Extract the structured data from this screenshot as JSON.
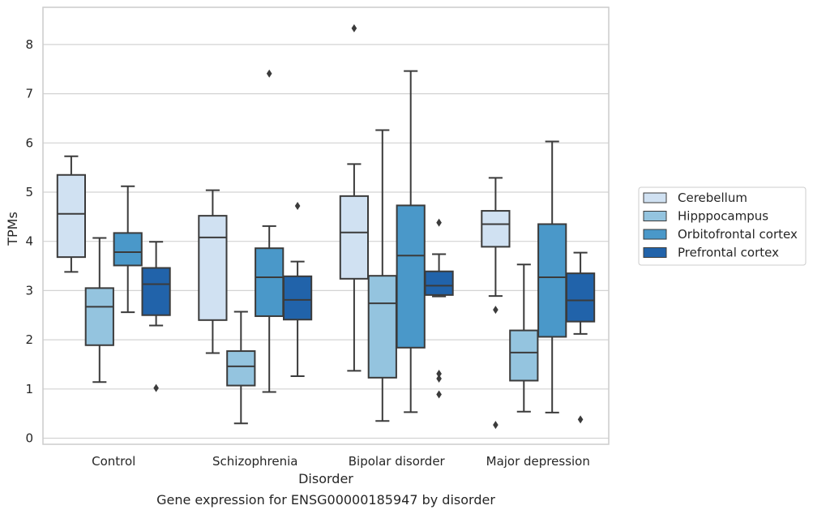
{
  "chart_data": {
    "type": "boxplot",
    "title": "Gene expression for ENSG00000185947 by disorder",
    "xlabel": "Disorder",
    "ylabel": "TPMs",
    "ylim": [
      -0.1,
      8.75
    ],
    "yticks": [
      0,
      1,
      2,
      3,
      4,
      5,
      6,
      7,
      8
    ],
    "grid": true,
    "legend_position": "right",
    "categories": [
      "Control",
      "Schizophrenia",
      "Bipolar disorder",
      "Major depression"
    ],
    "series": [
      {
        "name": "Cerebellum",
        "color": "#d0e1f2",
        "boxes": [
          {
            "whislo": 3.38,
            "q1": 3.68,
            "med": 4.56,
            "q3": 5.35,
            "whishi": 5.73,
            "fliers": []
          },
          {
            "whislo": 1.73,
            "q1": 2.4,
            "med": 4.08,
            "q3": 4.52,
            "whishi": 5.04,
            "fliers": []
          },
          {
            "whislo": 1.37,
            "q1": 3.24,
            "med": 4.18,
            "q3": 4.92,
            "whishi": 5.57,
            "fliers": [
              8.33
            ]
          },
          {
            "whislo": 2.89,
            "q1": 3.89,
            "med": 4.35,
            "q3": 4.62,
            "whishi": 5.29,
            "fliers": [
              2.61,
              0.27
            ]
          }
        ]
      },
      {
        "name": "Hipppocampus",
        "color": "#94c4df",
        "boxes": [
          {
            "whislo": 1.14,
            "q1": 1.89,
            "med": 2.67,
            "q3": 3.05,
            "whishi": 4.07,
            "fliers": []
          },
          {
            "whislo": 0.3,
            "q1": 1.07,
            "med": 1.46,
            "q3": 1.77,
            "whishi": 2.57,
            "fliers": []
          },
          {
            "whislo": 0.35,
            "q1": 1.23,
            "med": 2.74,
            "q3": 3.3,
            "whishi": 6.26,
            "fliers": []
          },
          {
            "whislo": 0.54,
            "q1": 1.17,
            "med": 1.74,
            "q3": 2.19,
            "whishi": 3.53,
            "fliers": []
          }
        ]
      },
      {
        "name": "Orbitofrontal cortex",
        "color": "#4a98c9",
        "boxes": [
          {
            "whislo": 2.56,
            "q1": 3.51,
            "med": 3.78,
            "q3": 4.17,
            "whishi": 5.12,
            "fliers": []
          },
          {
            "whislo": 0.94,
            "q1": 2.48,
            "med": 3.27,
            "q3": 3.86,
            "whishi": 4.31,
            "fliers": [
              7.41
            ]
          },
          {
            "whislo": 0.53,
            "q1": 1.84,
            "med": 3.71,
            "q3": 4.73,
            "whishi": 7.46,
            "fliers": []
          },
          {
            "whislo": 0.52,
            "q1": 2.06,
            "med": 3.27,
            "q3": 4.35,
            "whishi": 6.03,
            "fliers": []
          }
        ]
      },
      {
        "name": "Prefrontal cortex",
        "color": "#2163aa",
        "boxes": [
          {
            "whislo": 2.29,
            "q1": 2.5,
            "med": 3.13,
            "q3": 3.46,
            "whishi": 3.99,
            "fliers": [
              1.02
            ]
          },
          {
            "whislo": 1.26,
            "q1": 2.41,
            "med": 2.81,
            "q3": 3.29,
            "whishi": 3.59,
            "fliers": [
              4.72
            ]
          },
          {
            "whislo": 2.88,
            "q1": 2.91,
            "med": 3.1,
            "q3": 3.39,
            "whishi": 3.74,
            "fliers": [
              4.38,
              1.31,
              1.21,
              0.89
            ]
          },
          {
            "whislo": 2.12,
            "q1": 2.37,
            "med": 2.8,
            "q3": 3.35,
            "whishi": 3.77,
            "fliers": [
              0.38
            ]
          }
        ]
      }
    ]
  }
}
